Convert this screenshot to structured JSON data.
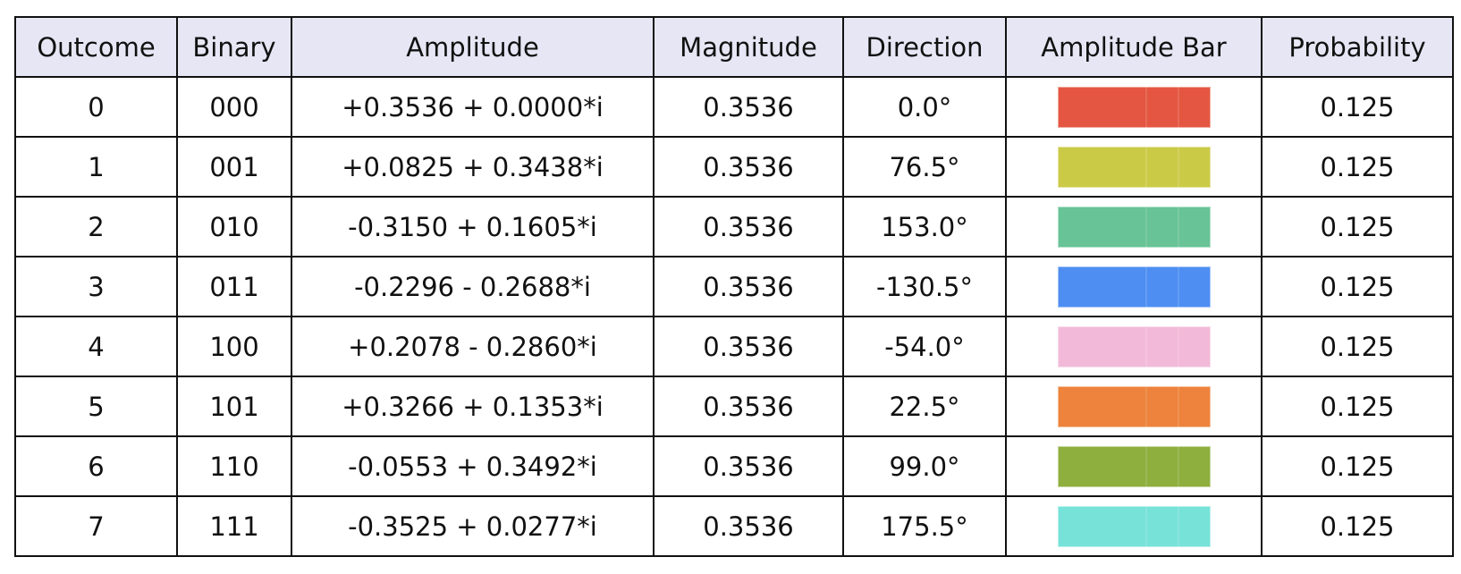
{
  "chart_data": {
    "type": "table",
    "columns": [
      "Outcome",
      "Binary",
      "Amplitude",
      "Magnitude",
      "Direction",
      "Amplitude Bar",
      "Probability"
    ],
    "rows": [
      {
        "outcome": "0",
        "binary": "000",
        "amplitude": "+0.3536 + 0.0000*i",
        "magnitude": "0.3536",
        "direction": "0.0°",
        "bar_color": "#e34a33",
        "probability": "0.125"
      },
      {
        "outcome": "1",
        "binary": "001",
        "amplitude": "+0.0825 + 0.3438*i",
        "magnitude": "0.3536",
        "direction": "76.5°",
        "bar_color": "#c8c73a",
        "probability": "0.125"
      },
      {
        "outcome": "2",
        "binary": "010",
        "amplitude": "-0.3150 + 0.1605*i",
        "magnitude": "0.3536",
        "direction": "153.0°",
        "bar_color": "#5dbf8f",
        "probability": "0.125"
      },
      {
        "outcome": "3",
        "binary": "011",
        "amplitude": "-0.2296 - 0.2688*i",
        "magnitude": "0.3536",
        "direction": "-130.5°",
        "bar_color": "#4186f2",
        "probability": "0.125"
      },
      {
        "outcome": "4",
        "binary": "100",
        "amplitude": "+0.2078 - 0.2860*i",
        "magnitude": "0.3536",
        "direction": "-54.0°",
        "bar_color": "#f2b5d6",
        "probability": "0.125"
      },
      {
        "outcome": "5",
        "binary": "101",
        "amplitude": "+0.3266 + 0.1353*i",
        "magnitude": "0.3536",
        "direction": "22.5°",
        "bar_color": "#ec7a2e",
        "probability": "0.125"
      },
      {
        "outcome": "6",
        "binary": "110",
        "amplitude": "-0.0553 + 0.3492*i",
        "magnitude": "0.3536",
        "direction": "99.0°",
        "bar_color": "#86a930",
        "probability": "0.125"
      },
      {
        "outcome": "7",
        "binary": "111",
        "amplitude": "-0.3525 + 0.0277*i",
        "magnitude": "0.3536",
        "direction": "175.5°",
        "bar_color": "#6de0d6",
        "probability": "0.125"
      }
    ]
  }
}
